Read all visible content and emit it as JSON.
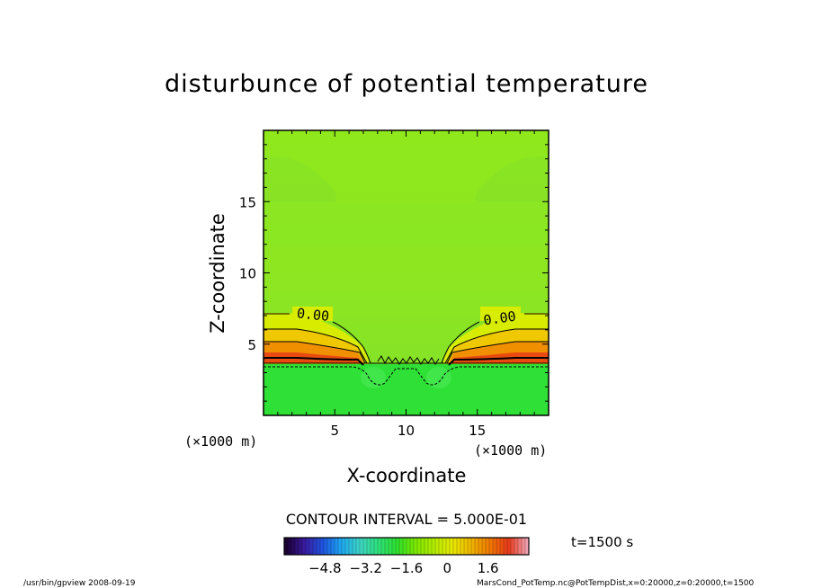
{
  "chart_data": {
    "type": "heatmap",
    "title": "disturbunce of potential temperature",
    "xlabel": "X-coordinate",
    "ylabel": "Z-coordinate",
    "x_unit_label": "(×1000 m)",
    "z_unit_label": "(×1000 m)",
    "xlim": [
      0,
      20
    ],
    "ylim": [
      0,
      20
    ],
    "xticks": [
      5,
      10,
      15
    ],
    "yticks": [
      5,
      10,
      15
    ],
    "contour_labels": [
      "0.00",
      "0.00"
    ],
    "contour_interval_text": "CONTOUR INTERVAL = 5.000E-01",
    "time_text": "t=1500 s",
    "colorbar": {
      "min": -6.4,
      "max": 3.2,
      "ticks": [
        -4.8,
        -3.2,
        -1.6,
        0,
        1.6
      ],
      "tick_labels": [
        "−4.8",
        "−3.2",
        "−1.6",
        "0",
        "1.6"
      ],
      "colormap": [
        "#1a0030",
        "#3a1aa0",
        "#1d55e0",
        "#1ea8f0",
        "#3ed4c4",
        "#2ee07a",
        "#2ee02e",
        "#7ce800",
        "#b4ec00",
        "#e8e800",
        "#f0b400",
        "#f07800",
        "#e83a1a",
        "#f0a0b0"
      ]
    }
  },
  "footer": {
    "left": "/usr/bin/gpview   2008-09-19",
    "right": "MarsCond_PotTemp.nc@PotTempDist,x=0:20000,z=0:20000,t=1500"
  }
}
